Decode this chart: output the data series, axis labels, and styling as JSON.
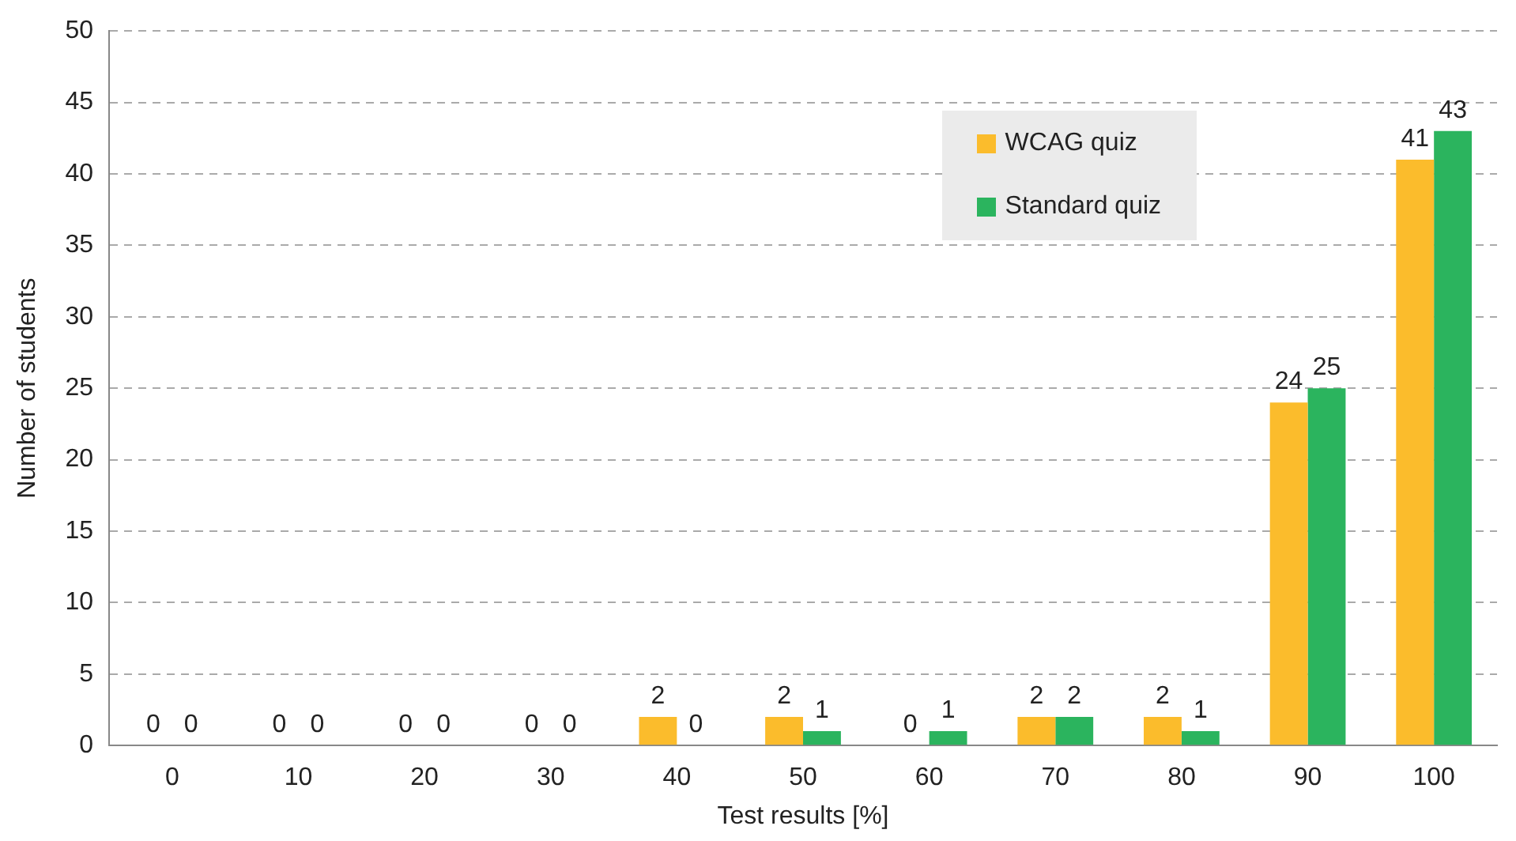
{
  "chart_data": {
    "type": "bar",
    "xlabel": "Test results [%]",
    "ylabel": "Number of students",
    "categories": [
      "0",
      "10",
      "20",
      "30",
      "40",
      "50",
      "60",
      "70",
      "80",
      "90",
      "100"
    ],
    "series": [
      {
        "name": "WCAG quiz",
        "color": "#fbbc2c",
        "values": [
          0,
          0,
          0,
          0,
          2,
          2,
          0,
          2,
          2,
          24,
          41
        ]
      },
      {
        "name": "Standard quiz",
        "color": "#2bb45e",
        "values": [
          0,
          0,
          0,
          0,
          0,
          1,
          1,
          2,
          1,
          25,
          43
        ]
      }
    ],
    "ylim": [
      0,
      50
    ],
    "yticks": [
      0,
      5,
      10,
      15,
      20,
      25,
      30,
      35,
      40,
      45,
      50
    ],
    "grid": "y",
    "legend": "top right",
    "data_labels": true
  }
}
